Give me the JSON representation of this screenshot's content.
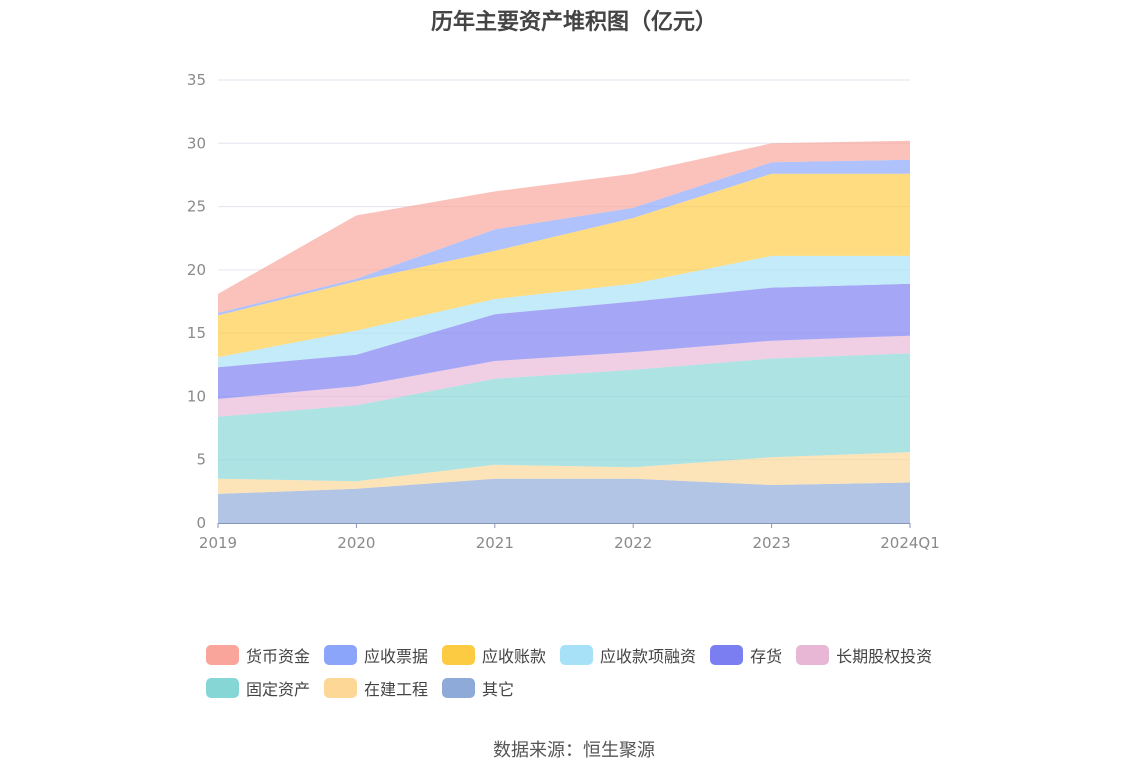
{
  "chart_data": {
    "type": "area",
    "stacked": true,
    "title": "历年主要资产堆积图（亿元）",
    "categories": [
      "2019",
      "2020",
      "2021",
      "2022",
      "2023",
      "2024Q1"
    ],
    "ylim": [
      0,
      35
    ],
    "yticks": [
      0,
      5,
      10,
      15,
      20,
      25,
      30,
      35
    ],
    "series": [
      {
        "name": "其它",
        "color": "#8eaad9",
        "values": [
          2.3,
          2.7,
          3.5,
          3.5,
          3.0,
          3.2
        ]
      },
      {
        "name": "在建工程",
        "color": "#fcd796",
        "values": [
          1.2,
          0.6,
          1.1,
          0.9,
          2.2,
          2.4
        ]
      },
      {
        "name": "固定资产",
        "color": "#86d6d6",
        "values": [
          4.9,
          6.0,
          6.8,
          7.7,
          7.8,
          7.8
        ]
      },
      {
        "name": "长期股权投资",
        "color": "#e9b7d6",
        "values": [
          1.4,
          1.5,
          1.4,
          1.4,
          1.4,
          1.4
        ]
      },
      {
        "name": "存货",
        "color": "#7b7ef1",
        "values": [
          2.5,
          2.5,
          3.7,
          4.0,
          4.2,
          4.1
        ]
      },
      {
        "name": "应收款项融资",
        "color": "#a6e1f7",
        "values": [
          0.8,
          1.9,
          1.2,
          1.4,
          2.5,
          2.2
        ]
      },
      {
        "name": "应收账款",
        "color": "#fdcb42",
        "values": [
          3.3,
          3.9,
          3.8,
          5.2,
          6.5,
          6.5
        ]
      },
      {
        "name": "应收票据",
        "color": "#8aa5fa",
        "values": [
          0.2,
          0.2,
          1.7,
          0.8,
          0.9,
          1.1
        ]
      },
      {
        "name": "货币资金",
        "color": "#f9a59b",
        "values": [
          1.5,
          5.0,
          3.0,
          2.7,
          1.5,
          1.5
        ]
      }
    ],
    "legend": {
      "position": "bottom",
      "items": [
        "货币资金",
        "应收票据",
        "应收账款",
        "应收款项融资",
        "存货",
        "长期股权投资",
        "固定资产",
        "在建工程",
        "其它"
      ]
    },
    "source": "数据来源：恒生聚源"
  }
}
